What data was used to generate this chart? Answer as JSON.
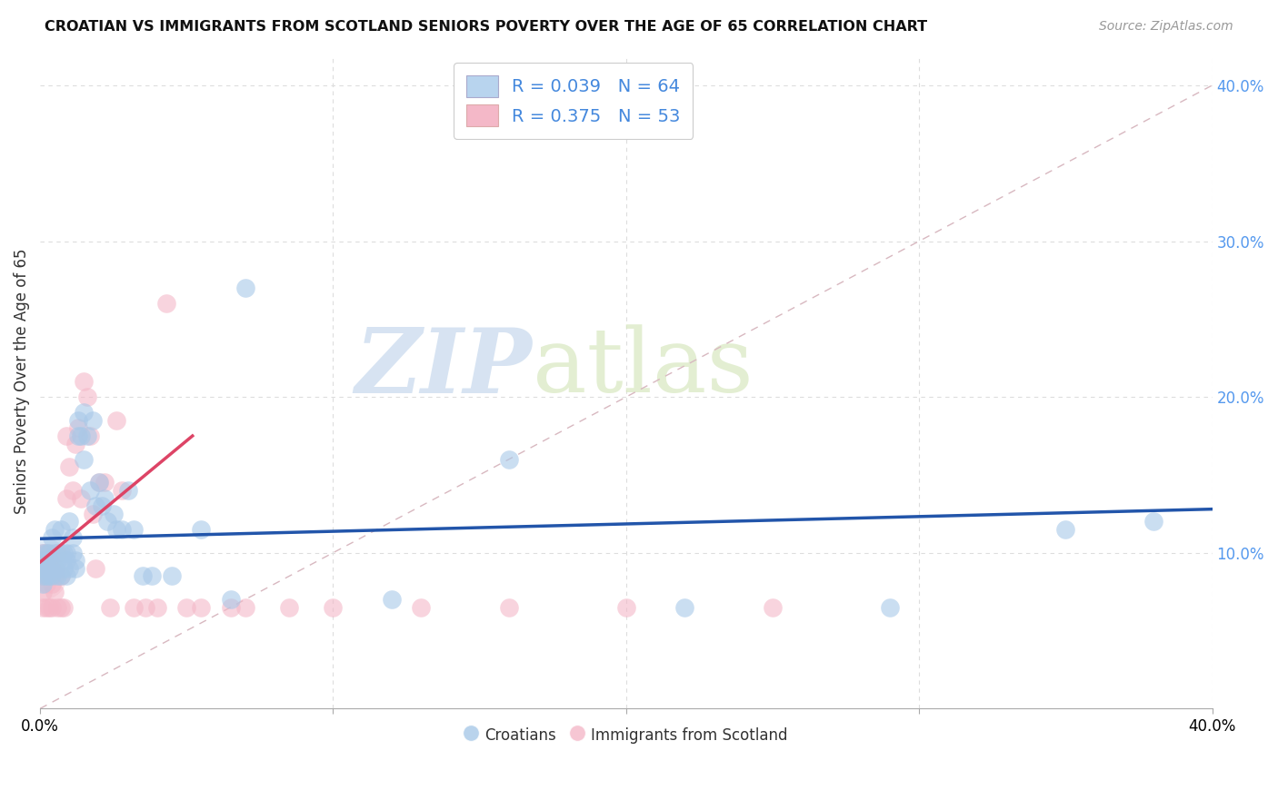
{
  "title": "CROATIAN VS IMMIGRANTS FROM SCOTLAND SENIORS POVERTY OVER THE AGE OF 65 CORRELATION CHART",
  "source": "Source: ZipAtlas.com",
  "ylabel": "Seniors Poverty Over the Age of 65",
  "xlim": [
    0.0,
    0.4
  ],
  "ylim": [
    0.0,
    0.42
  ],
  "blue_scatter_color": "#a8c8e8",
  "blue_edge_color": "#a8c8e8",
  "pink_scatter_color": "#f4b8c8",
  "pink_edge_color": "#f4b8c8",
  "blue_line_color": "#2255aa",
  "pink_line_color": "#dd4466",
  "diag_color": "#cccccc",
  "grid_color": "#dddddd",
  "legend_label1": "Croatians",
  "legend_label2": "Immigrants from Scotland",
  "watermark_zip": "ZIP",
  "watermark_atlas": "atlas",
  "croatians_x": [
    0.001,
    0.001,
    0.001,
    0.001,
    0.001,
    0.002,
    0.002,
    0.002,
    0.002,
    0.003,
    0.003,
    0.003,
    0.004,
    0.004,
    0.004,
    0.005,
    0.005,
    0.005,
    0.006,
    0.006,
    0.007,
    0.007,
    0.007,
    0.008,
    0.008,
    0.009,
    0.009,
    0.009,
    0.01,
    0.01,
    0.011,
    0.011,
    0.012,
    0.012,
    0.013,
    0.013,
    0.014,
    0.015,
    0.015,
    0.016,
    0.017,
    0.018,
    0.019,
    0.02,
    0.021,
    0.022,
    0.023,
    0.025,
    0.026,
    0.028,
    0.03,
    0.032,
    0.035,
    0.038,
    0.045,
    0.055,
    0.065,
    0.07,
    0.12,
    0.16,
    0.22,
    0.29,
    0.35,
    0.38
  ],
  "croatians_y": [
    0.1,
    0.09,
    0.095,
    0.085,
    0.08,
    0.1,
    0.09,
    0.095,
    0.085,
    0.1,
    0.09,
    0.085,
    0.11,
    0.095,
    0.085,
    0.1,
    0.09,
    0.115,
    0.095,
    0.085,
    0.1,
    0.115,
    0.085,
    0.1,
    0.09,
    0.095,
    0.085,
    0.1,
    0.12,
    0.09,
    0.1,
    0.11,
    0.095,
    0.09,
    0.175,
    0.185,
    0.175,
    0.16,
    0.19,
    0.175,
    0.14,
    0.185,
    0.13,
    0.145,
    0.13,
    0.135,
    0.12,
    0.125,
    0.115,
    0.115,
    0.14,
    0.115,
    0.085,
    0.085,
    0.085,
    0.115,
    0.07,
    0.27,
    0.07,
    0.16,
    0.065,
    0.065,
    0.115,
    0.12
  ],
  "scots_x": [
    0.001,
    0.001,
    0.001,
    0.001,
    0.001,
    0.002,
    0.002,
    0.002,
    0.002,
    0.003,
    0.003,
    0.003,
    0.004,
    0.004,
    0.004,
    0.005,
    0.005,
    0.006,
    0.006,
    0.007,
    0.007,
    0.008,
    0.009,
    0.009,
    0.01,
    0.011,
    0.012,
    0.013,
    0.014,
    0.015,
    0.016,
    0.017,
    0.018,
    0.019,
    0.02,
    0.022,
    0.024,
    0.026,
    0.028,
    0.032,
    0.036,
    0.04,
    0.043,
    0.05,
    0.055,
    0.065,
    0.07,
    0.085,
    0.1,
    0.13,
    0.16,
    0.2,
    0.25
  ],
  "scots_y": [
    0.1,
    0.085,
    0.075,
    0.095,
    0.065,
    0.1,
    0.09,
    0.065,
    0.08,
    0.085,
    0.095,
    0.065,
    0.09,
    0.08,
    0.065,
    0.085,
    0.075,
    0.1,
    0.065,
    0.085,
    0.065,
    0.065,
    0.175,
    0.135,
    0.155,
    0.14,
    0.17,
    0.18,
    0.135,
    0.21,
    0.2,
    0.175,
    0.125,
    0.09,
    0.145,
    0.145,
    0.065,
    0.185,
    0.14,
    0.065,
    0.065,
    0.065,
    0.26,
    0.065,
    0.065,
    0.065,
    0.065,
    0.065,
    0.065,
    0.065,
    0.065,
    0.065,
    0.065
  ],
  "blue_line_x": [
    0.0,
    0.4
  ],
  "blue_line_y": [
    0.109,
    0.128
  ],
  "pink_line_x": [
    0.0,
    0.052
  ],
  "pink_line_y": [
    0.094,
    0.175
  ]
}
